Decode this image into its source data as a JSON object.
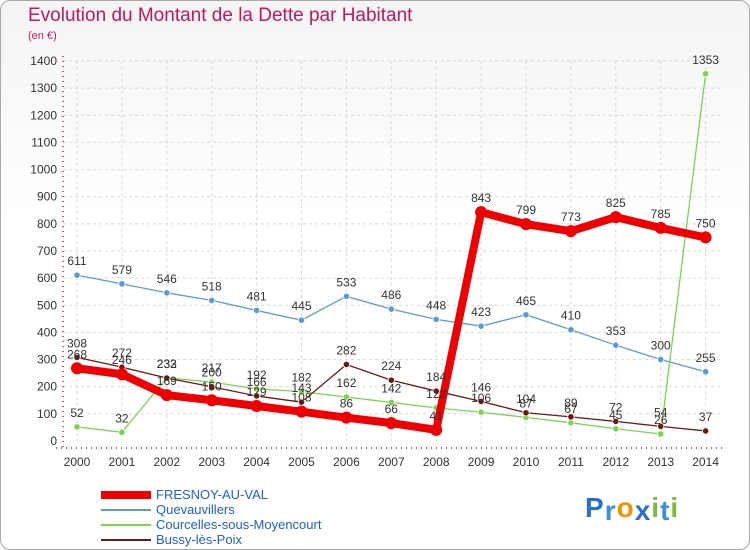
{
  "title": "Evolution du Montant de la Dette par Habitant",
  "subtitle": "(en €)",
  "logo": {
    "text": "Proxiti"
  },
  "chart_data": {
    "type": "line",
    "title": "Evolution du Montant de la Dette par Habitant",
    "ylabel": "(en €)",
    "ylim": [
      0,
      1400
    ],
    "yticks": [
      0,
      100,
      200,
      300,
      400,
      500,
      600,
      700,
      800,
      900,
      1000,
      1100,
      1200,
      1300,
      1400
    ],
    "grid": true,
    "legend": "bottom-left",
    "categories": [
      "2000",
      "2001",
      "2002",
      "2003",
      "2004",
      "2005",
      "2006",
      "2007",
      "2008",
      "2009",
      "2010",
      "2011",
      "2012",
      "2013",
      "2014"
    ],
    "series": [
      {
        "name": "FRESNOY-AU-VAL",
        "color": "#ee0000",
        "values": [
          268,
          246,
          169,
          150,
          129,
          108,
          86,
          66,
          41,
          843,
          799,
          773,
          825,
          785,
          750
        ]
      },
      {
        "name": "Quevauvillers",
        "color": "#5b9bd5",
        "values": [
          611,
          579,
          546,
          518,
          481,
          445,
          533,
          486,
          448,
          423,
          465,
          410,
          353,
          300,
          255
        ]
      },
      {
        "name": "Courcelles-sous-Moyencourt",
        "color": "#7ad44f",
        "values": [
          52,
          32,
          233,
          217,
          192,
          182,
          162,
          142,
          122,
          106,
          87,
          67,
          45,
          26,
          1353
        ]
      },
      {
        "name": "Bussy-lès-Poix",
        "color": "#6b1a1a",
        "values": [
          308,
          272,
          232,
          200,
          166,
          143,
          282,
          224,
          184,
          146,
          104,
          89,
          72,
          54,
          37
        ]
      }
    ]
  }
}
